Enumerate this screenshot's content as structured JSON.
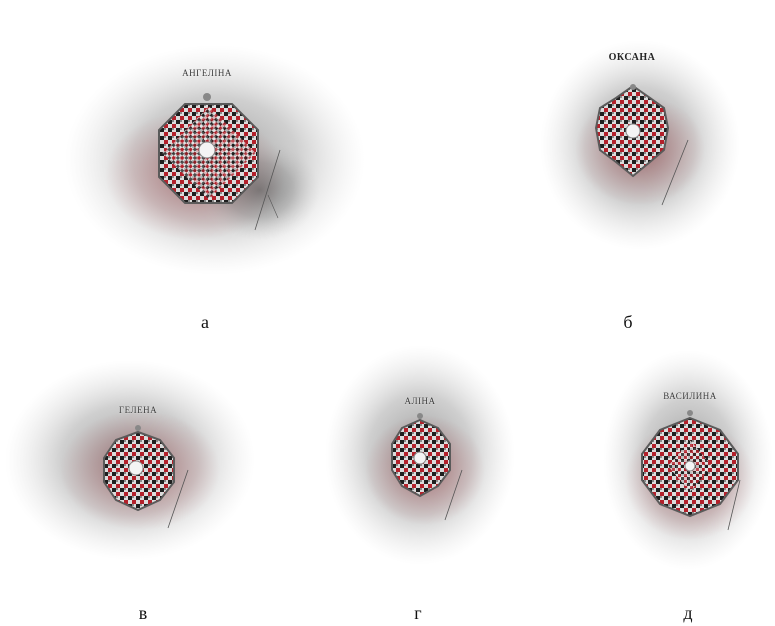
{
  "panels": [
    {
      "id": "a",
      "caption": "а",
      "name": "АНГЕЛІНА"
    },
    {
      "id": "b",
      "caption": "б",
      "name": "ОКСАНА"
    },
    {
      "id": "v",
      "caption": "в",
      "name": "ГЕЛЕНА"
    },
    {
      "id": "g",
      "caption": "г",
      "name": "АЛІНА"
    },
    {
      "id": "d",
      "caption": "д",
      "name": "ВАСИЛИНА"
    }
  ],
  "colors": {
    "smoke": "#6b6b6b",
    "red_glow": "#a3343a",
    "embroidery_red": "#b3202a",
    "embroidery_dark": "#1e1e1e",
    "embroidery_light": "#e8e8e8",
    "frame": "#5a5a5a"
  }
}
